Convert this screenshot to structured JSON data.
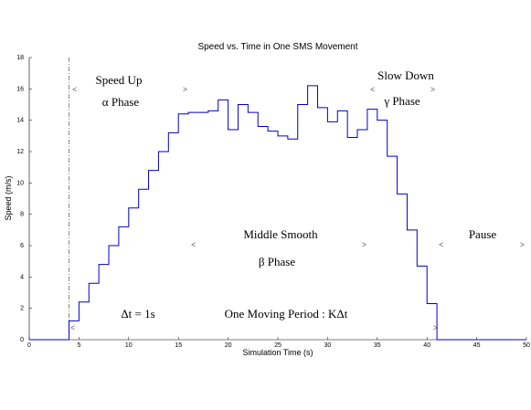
{
  "chart_data": {
    "type": "line",
    "step": true,
    "title": "Speed vs. Time in One SMS Movement",
    "xlabel": "Simulation Time (s)",
    "ylabel": "Speed (m/s)",
    "xlim": [
      0,
      50
    ],
    "ylim": [
      0,
      18
    ],
    "xticks": [
      "0",
      "5",
      "10",
      "15",
      "20",
      "25",
      "30",
      "35",
      "40",
      "45",
      "50"
    ],
    "yticks": [
      "0",
      "2",
      "4",
      "6",
      "8",
      "10",
      "12",
      "14",
      "16",
      "18"
    ],
    "grid": false,
    "color": "#0000cc",
    "series": [
      {
        "x": [
          0,
          4,
          5,
          6,
          7,
          8,
          9,
          10,
          11,
          12,
          13,
          14,
          15,
          16,
          17,
          18,
          19,
          20,
          21,
          22,
          23,
          24,
          25,
          26,
          27,
          28,
          29,
          30,
          31,
          32,
          33,
          34,
          35,
          36,
          37,
          38,
          39,
          40,
          41,
          50
        ],
        "values": [
          0,
          1.2,
          2.4,
          3.6,
          4.8,
          6.0,
          7.2,
          8.4,
          9.6,
          10.8,
          12.0,
          13.2,
          14.4,
          14.5,
          14.5,
          14.6,
          15.3,
          13.4,
          15.0,
          14.5,
          13.6,
          13.3,
          13.0,
          12.8,
          15.0,
          16.2,
          14.8,
          13.9,
          14.6,
          12.9,
          13.4,
          14.7,
          14.0,
          11.7,
          9.3,
          7.0,
          4.7,
          2.3,
          0,
          0
        ]
      }
    ],
    "reference_lines": [
      {
        "orientation": "vertical",
        "x": 4,
        "style": "dash-dot"
      }
    ],
    "annotations": {
      "speed_up": "Speed Up",
      "alpha_phase": "α Phase",
      "slow_down": "Slow Down",
      "gamma_phase": "γ Phase",
      "middle_smooth": "Middle Smooth",
      "beta_phase": "β Phase",
      "pause": "Pause",
      "delta_t": "Δt = 1s",
      "moving_period": "One Moving Period : KΔt"
    }
  }
}
